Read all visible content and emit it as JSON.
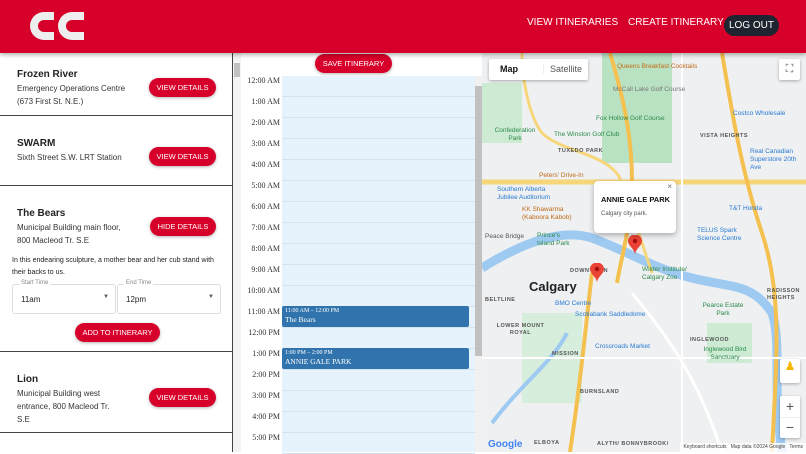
{
  "header": {
    "logo_text": "CALGARY COMPASS",
    "nav": [
      "VIEW ITINERARIES",
      "CREATE ITINERARY"
    ],
    "logout": "LOG OUT",
    "brand_color": "#d7002a"
  },
  "artworks": [
    {
      "title": "Frozen River",
      "location": "Emergency Operations Centre (673 First St. N.E.)",
      "button": "VIEW DETAILS"
    },
    {
      "title": "SWARM",
      "location": "Sixth Street S.W. LRT Station",
      "button": "VIEW DETAILS"
    },
    {
      "title": "The Bears",
      "location": "Municipal Building main floor, 800 Macleod Tr. S.E",
      "button": "HIDE DETAILS",
      "description": "In this endearing sculpture, a mother bear and her cub stand with their backs to us.",
      "start_label": "Start Time",
      "start_value": "11am",
      "end_label": "End Time",
      "end_value": "12pm",
      "add_button": "ADD TO ITINERARY"
    },
    {
      "title": "Lion",
      "location": "Municipal Building west entrance, 800 Macleod Tr. S.E",
      "button": "VIEW DETAILS"
    }
  ],
  "calendar": {
    "save_button": "SAVE ITINERARY",
    "hours": [
      "12:00 AM",
      "1:00 AM",
      "2:00 AM",
      "3:00 AM",
      "4:00 AM",
      "5:00 AM",
      "6:00 AM",
      "7:00 AM",
      "8:00 AM",
      "9:00 AM",
      "10:00 AM",
      "11:00 AM",
      "12:00 PM",
      "1:00 PM",
      "2:00 PM",
      "3:00 PM",
      "4:00 PM",
      "5:00 PM"
    ],
    "events": [
      {
        "time": "11:00 AM – 12:00 PM",
        "title": "The Bears"
      },
      {
        "time": "1:00 PM – 2:00 PM",
        "title": "ANNIE GALE PARK"
      }
    ],
    "event_color": "#3174ad"
  },
  "map": {
    "tabs": [
      "Map",
      "Satellite"
    ],
    "active_tab": "Map",
    "info_title": "ANNIE GALE PARK",
    "info_text": "Calgary city park.",
    "city": "Calgary",
    "labels": [
      "Queens Breakfast Cocktails",
      "McCall Lake Golf Course",
      "Fox Hollow Golf Course",
      "The Winston Golf Club",
      "Confederation Park",
      "TUXEDO PARK",
      "VISTA HEIGHTS",
      "Costco Wholesale",
      "Real Canadian Superstore 20th Ave",
      "Peters' Drive-In",
      "Southern Alberta Jubilee Auditorium",
      "KK Shawarma (Kaboora Kabob)",
      "Peace Bridge",
      "Prince's Island Park",
      "T&T Honda",
      "TELUS Spark Science Centre",
      "DOWNTOWN",
      "Wilder Institute/ Calgary Zoo",
      "BELTLINE",
      "BMO Centre",
      "Scotiabank Saddledome",
      "Pearce Estate Park",
      "RADISSON HEIGHTS",
      "LOWER MOUNT ROYAL",
      "MISSION",
      "Crossroads Market",
      "INGLEWOOD",
      "Inglewood Bird Sanctuary",
      "BURNSLAND",
      "ELBOYA",
      "ALYTH/ BONNYBROOK/"
    ],
    "footer": [
      "Keyboard shortcuts",
      "Map data ©2024 Google",
      "Terms"
    ],
    "google": "Google"
  }
}
